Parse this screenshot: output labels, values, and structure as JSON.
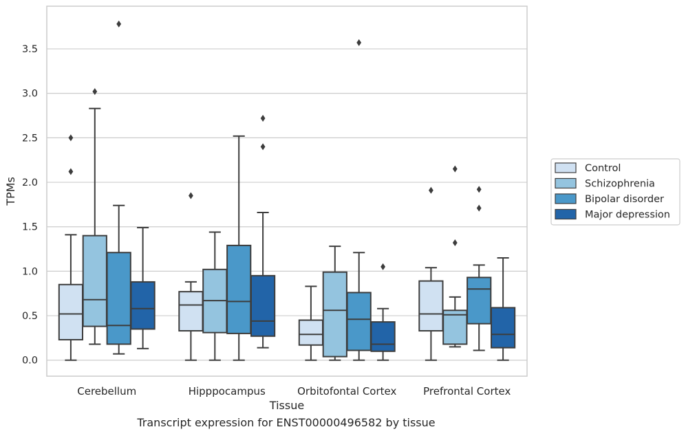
{
  "caption": "Transcript expression for ENST00000496582 by tissue",
  "chart_data": {
    "type": "box",
    "xlabel": "Tissue",
    "ylabel": "TPMs",
    "ylim": [
      -0.18,
      3.98
    ],
    "yticks": [
      0.0,
      0.5,
      1.0,
      1.5,
      2.0,
      2.5,
      3.0,
      3.5
    ],
    "ytick_labels": [
      "0.0",
      "0.5",
      "1.0",
      "1.5",
      "2.0",
      "2.5",
      "3.0",
      "3.5"
    ],
    "grid": "horizontal",
    "legend_position": "right",
    "categories": [
      "Cerebellum",
      "Hipppocampus",
      "Orbitofontal Cortex",
      "Prefrontal Cortex"
    ],
    "series": [
      {
        "name": "Control",
        "color": "#d0e1f2",
        "boxes": [
          {
            "whislo": 0.0,
            "q1": 0.23,
            "med": 0.52,
            "q3": 0.85,
            "whishi": 1.41,
            "fliers": [
              2.12,
              2.5
            ]
          },
          {
            "whislo": 0.0,
            "q1": 0.33,
            "med": 0.62,
            "q3": 0.77,
            "whishi": 0.88,
            "fliers": [
              1.85
            ]
          },
          {
            "whislo": 0.0,
            "q1": 0.17,
            "med": 0.29,
            "q3": 0.45,
            "whishi": 0.83,
            "fliers": []
          },
          {
            "whislo": 0.0,
            "q1": 0.33,
            "med": 0.52,
            "q3": 0.89,
            "whishi": 1.04,
            "fliers": [
              1.91
            ]
          }
        ]
      },
      {
        "name": "Schizophrenia",
        "color": "#94c4df",
        "boxes": [
          {
            "whislo": 0.18,
            "q1": 0.38,
            "med": 0.68,
            "q3": 1.4,
            "whishi": 2.83,
            "fliers": [
              3.02
            ]
          },
          {
            "whislo": 0.0,
            "q1": 0.31,
            "med": 0.67,
            "q3": 1.02,
            "whishi": 1.44,
            "fliers": []
          },
          {
            "whislo": 0.0,
            "q1": 0.04,
            "med": 0.56,
            "q3": 0.99,
            "whishi": 1.28,
            "fliers": []
          },
          {
            "whislo": 0.15,
            "q1": 0.18,
            "med": 0.51,
            "q3": 0.56,
            "whishi": 0.71,
            "fliers": [
              1.32,
              2.15
            ]
          }
        ]
      },
      {
        "name": "Bipolar disorder",
        "color": "#4a98c9",
        "boxes": [
          {
            "whislo": 0.07,
            "q1": 0.18,
            "med": 0.39,
            "q3": 1.21,
            "whishi": 1.74,
            "fliers": [
              3.78
            ]
          },
          {
            "whislo": 0.0,
            "q1": 0.3,
            "med": 0.66,
            "q3": 1.29,
            "whishi": 2.52,
            "fliers": []
          },
          {
            "whislo": 0.0,
            "q1": 0.11,
            "med": 0.46,
            "q3": 0.76,
            "whishi": 1.21,
            "fliers": [
              3.57
            ]
          },
          {
            "whislo": 0.11,
            "q1": 0.41,
            "med": 0.8,
            "q3": 0.93,
            "whishi": 1.07,
            "fliers": [
              1.71,
              1.92
            ]
          }
        ]
      },
      {
        "name": "Major depression",
        "color": "#2264a8",
        "boxes": [
          {
            "whislo": 0.13,
            "q1": 0.35,
            "med": 0.58,
            "q3": 0.88,
            "whishi": 1.49,
            "fliers": []
          },
          {
            "whislo": 0.14,
            "q1": 0.27,
            "med": 0.44,
            "q3": 0.95,
            "whishi": 1.66,
            "fliers": [
              2.4,
              2.72
            ]
          },
          {
            "whislo": 0.0,
            "q1": 0.1,
            "med": 0.18,
            "q3": 0.43,
            "whishi": 0.58,
            "fliers": [
              1.05
            ]
          },
          {
            "whislo": 0.0,
            "q1": 0.14,
            "med": 0.29,
            "q3": 0.59,
            "whishi": 1.15,
            "fliers": []
          }
        ]
      }
    ]
  }
}
